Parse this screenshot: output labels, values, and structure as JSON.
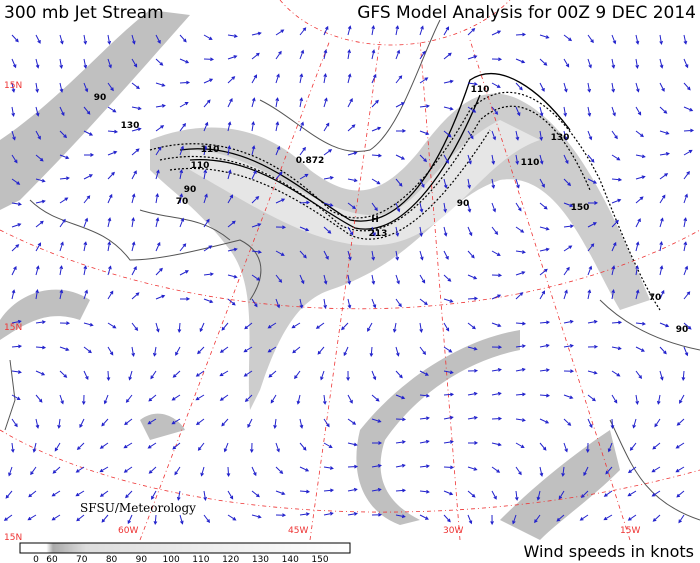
{
  "header": {
    "title": "300 mb Jet Stream",
    "subtitle": "GFS Model Analysis for 00Z 9 DEC 2014"
  },
  "map": {
    "credit": "SFSU/Meteorology",
    "grid_labels": [
      "15N",
      "15N",
      "15N",
      "60W",
      "45W",
      "30W",
      "15W"
    ],
    "contour_labels": [
      "90",
      "110",
      "90",
      "70",
      "130",
      "110",
      "90",
      "110",
      "130",
      "150",
      "70",
      "90",
      "0.872",
      "H",
      "213",
      "110"
    ]
  },
  "colorbar": {
    "ticks": [
      0,
      60,
      70,
      80,
      90,
      100,
      110,
      120,
      130,
      140,
      150
    ],
    "caption": "Wind speeds in knots"
  }
}
